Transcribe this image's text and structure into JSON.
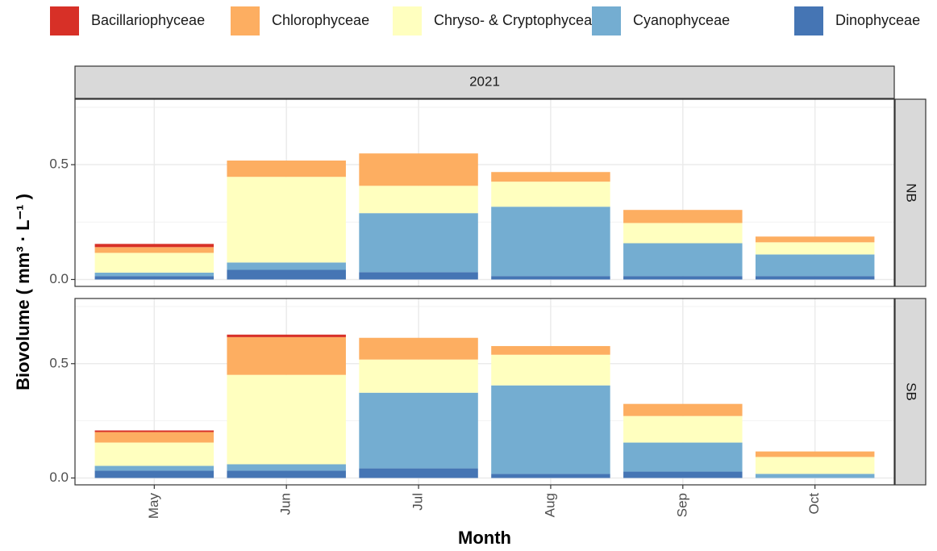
{
  "chart_data": {
    "type": "bar",
    "stacked": true,
    "facet_title": "2021",
    "xlabel": "Month",
    "ylabel": "Biovolume ( mm³ · L⁻¹ )",
    "categories": [
      "May",
      "Jun",
      "Jul",
      "Aug",
      "Sep",
      "Oct"
    ],
    "legend": "top",
    "grid": true,
    "ylim": [
      -0.03,
      0.785
    ],
    "yticks": [
      {
        "value": 0,
        "label": "0.0"
      },
      0.5
    ],
    "series": [
      {
        "name": "Bacillariophyceae",
        "color": "#d73027"
      },
      {
        "name": "Chlorophyceae",
        "color": "#fdae61"
      },
      {
        "name": "Chryso- & Cryptophyceae",
        "color": "#ffffbf"
      },
      {
        "name": "Cyanophyceae",
        "color": "#74add1"
      },
      {
        "name": "Dinophyceae",
        "color": "#4575b4"
      }
    ],
    "panels": [
      {
        "label": "NB",
        "series": [
          {
            "values": [
              0.014,
              0,
              0,
              0,
              0,
              0
            ]
          },
          {
            "values": [
              0.025,
              0.071,
              0.141,
              0.042,
              0.057,
              0.025
            ]
          },
          {
            "values": [
              0.086,
              0.373,
              0.119,
              0.109,
              0.088,
              0.053
            ]
          },
          {
            "values": [
              0.015,
              0.032,
              0.257,
              0.302,
              0.143,
              0.094
            ]
          },
          {
            "values": [
              0.015,
              0.042,
              0.032,
              0.015,
              0.015,
              0.015
            ]
          }
        ]
      },
      {
        "label": "SB",
        "series": [
          {
            "values": [
              0.007,
              0.011,
              0,
              0,
              0,
              0
            ]
          },
          {
            "values": [
              0.046,
              0.165,
              0.095,
              0.038,
              0.053,
              0.024
            ]
          },
          {
            "values": [
              0.102,
              0.391,
              0.145,
              0.134,
              0.116,
              0.074
            ]
          },
          {
            "values": [
              0.021,
              0.028,
              0.331,
              0.387,
              0.127,
              0.018
            ]
          },
          {
            "values": [
              0.032,
              0.032,
              0.042,
              0.018,
              0.028,
              0
            ]
          }
        ]
      }
    ]
  }
}
